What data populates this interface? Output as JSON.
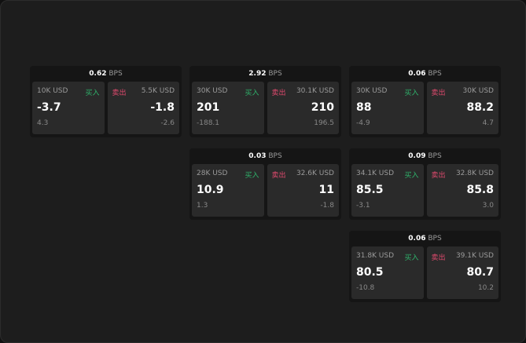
{
  "unit": "BPS",
  "buy_label": "买入",
  "sell_label": "卖出",
  "panels": [
    {
      "bps": "0.62",
      "buy": {
        "size": "10K USD",
        "price": "-3.7",
        "change": "4.3"
      },
      "sell": {
        "size": "5.5K USD",
        "price": "-1.8",
        "change": "-2.6"
      }
    },
    {
      "bps": "2.92",
      "buy": {
        "size": "30K USD",
        "price": "201",
        "change": "-188.1"
      },
      "sell": {
        "size": "30.1K USD",
        "price": "210",
        "change": "196.5"
      }
    },
    {
      "bps": "0.06",
      "buy": {
        "size": "30K USD",
        "price": "88",
        "change": "-4.9"
      },
      "sell": {
        "size": "30K USD",
        "price": "88.2",
        "change": "4.7"
      }
    },
    {
      "bps": "0.03",
      "buy": {
        "size": "28K USD",
        "price": "10.9",
        "change": "1.3"
      },
      "sell": {
        "size": "32.6K USD",
        "price": "11",
        "change": "-1.8"
      }
    },
    {
      "bps": "0.09",
      "buy": {
        "size": "34.1K USD",
        "price": "85.5",
        "change": "-3.1"
      },
      "sell": {
        "size": "32.8K USD",
        "price": "85.8",
        "change": "3.0"
      }
    },
    {
      "bps": "0.06",
      "buy": {
        "size": "31.8K USD",
        "price": "80.5",
        "change": "-10.8"
      },
      "sell": {
        "size": "39.1K USD",
        "price": "80.7",
        "change": "10.2"
      }
    }
  ]
}
